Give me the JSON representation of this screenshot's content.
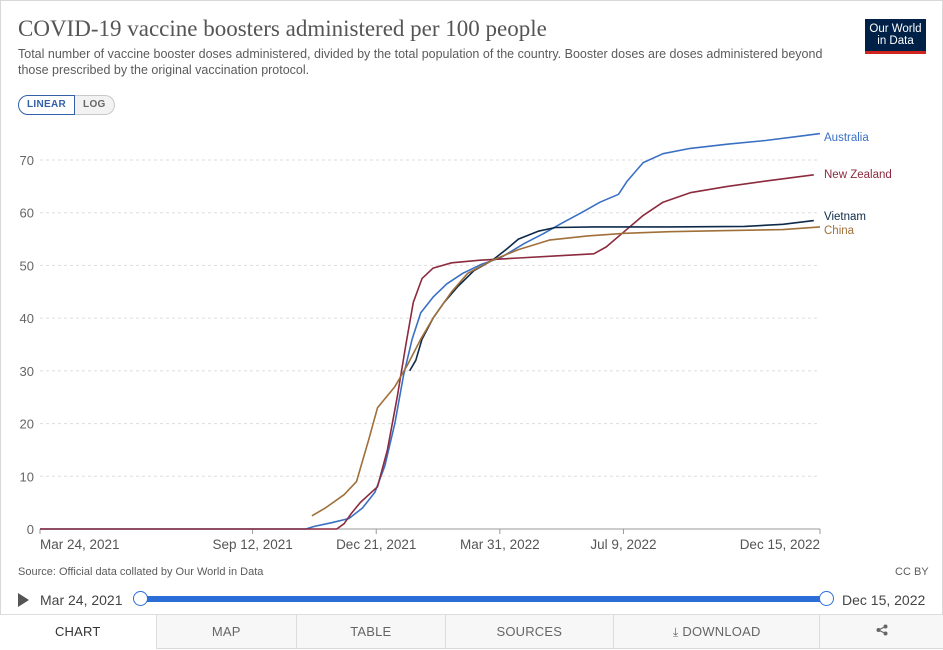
{
  "header": {
    "title": "COVID-19 vaccine boosters administered per 100 people",
    "subtitle": "Total number of vaccine booster doses administered, divided by the total population of the country. Booster doses are doses administered beyond those prescribed by the original vaccination protocol.",
    "logo_line1": "Our World",
    "logo_line2": "in Data"
  },
  "scale_toggle": {
    "linear_label": "LINEAR",
    "log_label": "LOG",
    "selected": "linear"
  },
  "chart_data": {
    "type": "line",
    "title": "COVID-19 vaccine boosters administered per 100 people",
    "xlabel": "",
    "ylabel": "",
    "x_axis_type": "date",
    "xlim": [
      "2021-03-24",
      "2022-12-15"
    ],
    "ylim": [
      0,
      75
    ],
    "y_ticks": [
      0,
      10,
      20,
      30,
      40,
      50,
      60,
      70
    ],
    "x_ticks": [
      {
        "date": "2021-03-24",
        "label": "Mar 24, 2021"
      },
      {
        "date": "2021-09-12",
        "label": "Sep 12, 2021"
      },
      {
        "date": "2021-12-21",
        "label": "Dec 21, 2021"
      },
      {
        "date": "2022-03-31",
        "label": "Mar 31, 2022"
      },
      {
        "date": "2022-07-09",
        "label": "Jul 9, 2022"
      },
      {
        "date": "2022-12-15",
        "label": "Dec 15, 2022"
      }
    ],
    "grid": "horizontal",
    "legend": "right-end-labels",
    "series": [
      {
        "name": "Australia",
        "color": "#3a70c4",
        "points": [
          [
            "2021-03-24",
            0
          ],
          [
            "2021-10-25",
            0
          ],
          [
            "2021-11-01",
            0.5
          ],
          [
            "2021-11-15",
            1.2
          ],
          [
            "2021-11-29",
            2
          ],
          [
            "2021-12-10",
            4
          ],
          [
            "2021-12-20",
            7
          ],
          [
            "2021-12-28",
            12
          ],
          [
            "2022-01-05",
            20
          ],
          [
            "2022-01-12",
            29
          ],
          [
            "2022-01-19",
            36
          ],
          [
            "2022-01-26",
            41
          ],
          [
            "2022-02-05",
            44
          ],
          [
            "2022-02-16",
            46.5
          ],
          [
            "2022-03-01",
            48.5
          ],
          [
            "2022-03-16",
            50.2
          ],
          [
            "2022-04-01",
            51.5
          ],
          [
            "2022-04-20",
            54.2
          ],
          [
            "2022-05-05",
            56
          ],
          [
            "2022-05-20",
            58
          ],
          [
            "2022-06-05",
            60
          ],
          [
            "2022-06-20",
            62
          ],
          [
            "2022-07-05",
            63.5
          ],
          [
            "2022-07-12",
            66
          ],
          [
            "2022-07-25",
            69.5
          ],
          [
            "2022-08-10",
            71.2
          ],
          [
            "2022-09-01",
            72.2
          ],
          [
            "2022-10-01",
            73
          ],
          [
            "2022-11-01",
            73.7
          ],
          [
            "2022-12-01",
            74.6
          ],
          [
            "2022-12-15",
            75
          ]
        ]
      },
      {
        "name": "New Zealand",
        "color": "#8c2a3e",
        "points": [
          [
            "2021-03-24",
            0
          ],
          [
            "2021-11-19",
            0
          ],
          [
            "2021-11-25",
            1
          ],
          [
            "2021-12-01",
            3
          ],
          [
            "2021-12-08",
            5
          ],
          [
            "2021-12-15",
            6.5
          ],
          [
            "2021-12-22",
            8
          ],
          [
            "2021-12-30",
            15
          ],
          [
            "2022-01-07",
            25
          ],
          [
            "2022-01-14",
            35
          ],
          [
            "2022-01-20",
            43
          ],
          [
            "2022-01-27",
            47.5
          ],
          [
            "2022-02-05",
            49.5
          ],
          [
            "2022-02-20",
            50.5
          ],
          [
            "2022-03-15",
            51
          ],
          [
            "2022-04-15",
            51.4
          ],
          [
            "2022-05-15",
            51.8
          ],
          [
            "2022-06-15",
            52.2
          ],
          [
            "2022-06-25",
            53.5
          ],
          [
            "2022-07-10",
            56.5
          ],
          [
            "2022-07-25",
            59.5
          ],
          [
            "2022-08-10",
            62
          ],
          [
            "2022-09-01",
            63.8
          ],
          [
            "2022-10-01",
            65
          ],
          [
            "2022-11-01",
            66
          ],
          [
            "2022-12-10",
            67.2
          ]
        ]
      },
      {
        "name": "Vietnam",
        "color": "#0e2a4a",
        "points": [
          [
            "2022-01-17",
            30
          ],
          [
            "2022-01-22",
            32
          ],
          [
            "2022-01-27",
            36
          ],
          [
            "2022-02-05",
            40
          ],
          [
            "2022-02-14",
            43
          ],
          [
            "2022-02-25",
            46
          ],
          [
            "2022-03-10",
            49
          ],
          [
            "2022-03-25",
            51
          ],
          [
            "2022-04-05",
            53
          ],
          [
            "2022-04-15",
            55
          ],
          [
            "2022-05-01",
            56.5
          ],
          [
            "2022-05-15",
            57.2
          ],
          [
            "2022-06-15",
            57.3
          ],
          [
            "2022-08-15",
            57.3
          ],
          [
            "2022-10-15",
            57.4
          ],
          [
            "2022-11-15",
            57.8
          ],
          [
            "2022-12-10",
            58.5
          ]
        ]
      },
      {
        "name": "China",
        "color": "#a0703a",
        "points": [
          [
            "2021-10-30",
            2.5
          ],
          [
            "2021-11-10",
            4
          ],
          [
            "2021-11-25",
            6.5
          ],
          [
            "2021-12-05",
            9
          ],
          [
            "2021-12-15",
            17
          ],
          [
            "2021-12-22",
            23
          ],
          [
            "2022-01-05",
            27
          ],
          [
            "2022-01-15",
            31
          ],
          [
            "2022-01-26",
            36
          ],
          [
            "2022-02-05",
            40
          ],
          [
            "2022-02-20",
            45
          ],
          [
            "2022-03-05",
            48.5
          ],
          [
            "2022-03-25",
            51
          ],
          [
            "2022-04-15",
            53
          ],
          [
            "2022-05-10",
            54.8
          ],
          [
            "2022-06-10",
            55.6
          ],
          [
            "2022-07-10",
            56.1
          ],
          [
            "2022-08-15",
            56.4
          ],
          [
            "2022-10-01",
            56.6
          ],
          [
            "2022-11-15",
            56.8
          ],
          [
            "2022-12-15",
            57.3
          ]
        ]
      }
    ]
  },
  "footer": {
    "source": "Source: Official data collated by Our World in Data",
    "license": "CC BY"
  },
  "timeline": {
    "start_label": "Mar 24, 2021",
    "end_label": "Dec 15, 2022"
  },
  "tabs": [
    {
      "label": "CHART",
      "active": true
    },
    {
      "label": "MAP",
      "active": false
    },
    {
      "label": "TABLE",
      "active": false
    },
    {
      "label": "SOURCES",
      "active": false
    },
    {
      "label": "DOWNLOAD",
      "active": false
    },
    {
      "label": "",
      "active": false
    }
  ],
  "icons": {
    "play": "play-icon",
    "download": "download-icon",
    "share": "share-icon"
  }
}
